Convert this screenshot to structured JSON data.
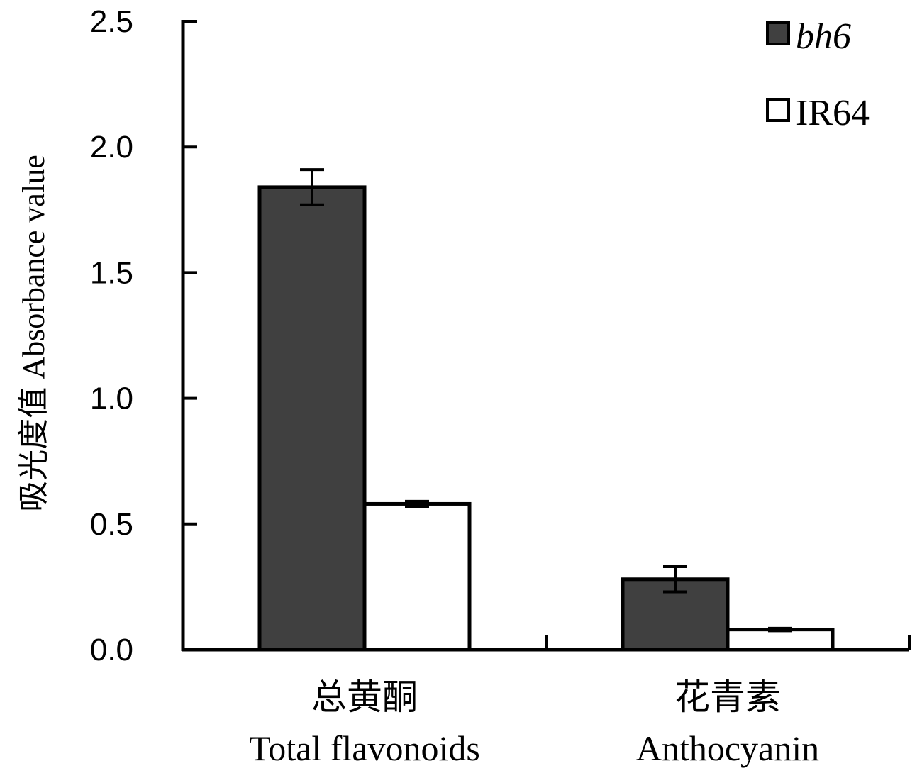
{
  "chart_data": {
    "type": "bar",
    "ylabel": "吸光度值 Absorbance value",
    "ylim": [
      0,
      2.5
    ],
    "yticks": [
      "0.0",
      "0.5",
      "1.0",
      "1.5",
      "2.0",
      "2.5"
    ],
    "categories": [
      {
        "zh": "总黄酮",
        "en": "Total flavonoids"
      },
      {
        "zh": "花青素",
        "en": "Anthocyanin"
      }
    ],
    "series": [
      {
        "name": "bh6",
        "color": "#404040",
        "values": [
          1.84,
          0.28
        ],
        "errors": [
          0.07,
          0.05
        ]
      },
      {
        "name": "IR64",
        "color": "#ffffff",
        "values": [
          0.58,
          0.08
        ],
        "errors": [
          0.01,
          0.005
        ]
      }
    ],
    "legend_position": "top-right",
    "grid": false
  }
}
